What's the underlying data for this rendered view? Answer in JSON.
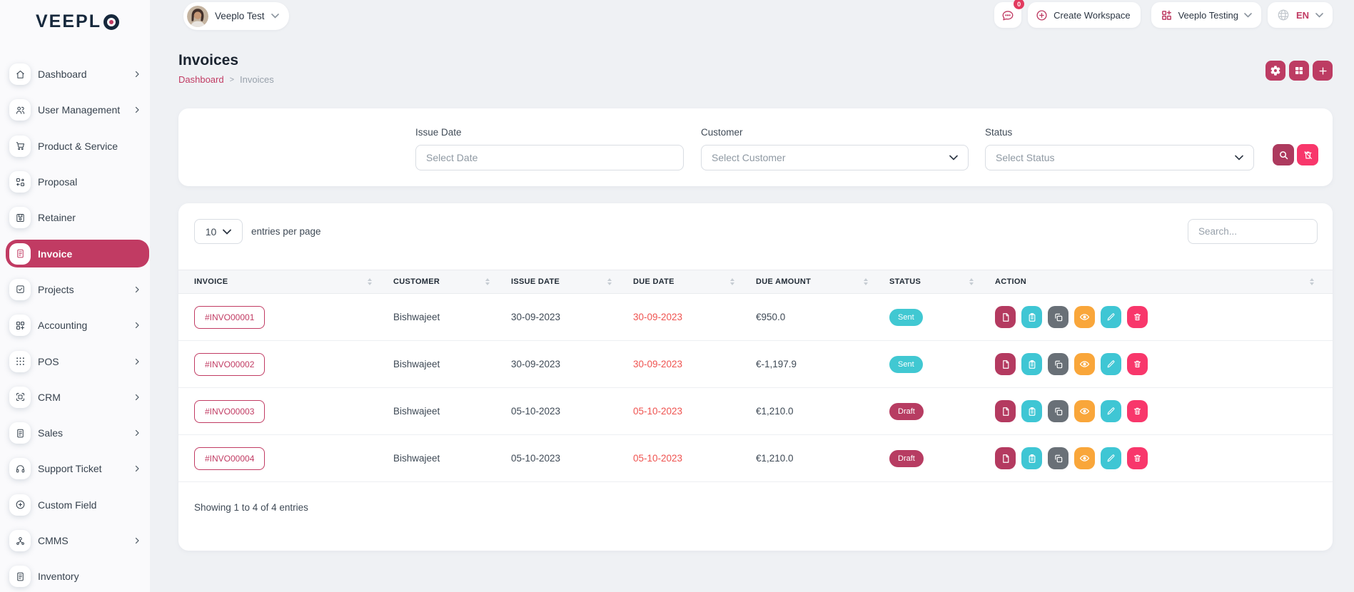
{
  "brand": {
    "name": "VEEPLO"
  },
  "header": {
    "user_workspace": "Veeplo Test",
    "notification_count": "0",
    "create_workspace_label": "Create Workspace",
    "workspace_selector": "Veeplo Testing",
    "language": "EN"
  },
  "sidebar": {
    "items": [
      {
        "label": "Dashboard",
        "icon": "home",
        "has_children": true,
        "active": false
      },
      {
        "label": "User Management",
        "icon": "users",
        "has_children": true,
        "active": false
      },
      {
        "label": "Product & Service",
        "icon": "cart",
        "has_children": false,
        "active": false
      },
      {
        "label": "Proposal",
        "icon": "swap-grid",
        "has_children": false,
        "active": false
      },
      {
        "label": "Retainer",
        "icon": "save",
        "has_children": false,
        "active": false
      },
      {
        "label": "Invoice",
        "icon": "invoice-doc",
        "has_children": false,
        "active": true
      },
      {
        "label": "Projects",
        "icon": "checkbox",
        "has_children": true,
        "active": false
      },
      {
        "label": "Accounting",
        "icon": "grid-plus",
        "has_children": true,
        "active": false
      },
      {
        "label": "POS",
        "icon": "dots-grid",
        "has_children": true,
        "active": false
      },
      {
        "label": "CRM",
        "icon": "scan-box",
        "has_children": true,
        "active": false
      },
      {
        "label": "Sales",
        "icon": "doc",
        "has_children": true,
        "active": false
      },
      {
        "label": "Support Ticket",
        "icon": "headset",
        "has_children": true,
        "active": false
      },
      {
        "label": "Custom Field",
        "icon": "circle-plus",
        "has_children": false,
        "active": false
      },
      {
        "label": "CMMS",
        "icon": "person-nodes",
        "has_children": true,
        "active": false
      },
      {
        "label": "Inventory",
        "icon": "doc",
        "has_children": false,
        "active": false
      }
    ]
  },
  "page": {
    "title": "Invoices",
    "breadcrumb": {
      "parent": "Dashboard",
      "current": "Invoices"
    }
  },
  "filters": {
    "issue_date": {
      "label": "Issue Date",
      "placeholder": "Select Date"
    },
    "customer": {
      "label": "Customer",
      "placeholder": "Select Customer"
    },
    "status": {
      "label": "Status",
      "placeholder": "Select Status"
    }
  },
  "table": {
    "entries_per_page_value": "10",
    "entries_per_page_label": "entries per page",
    "search_placeholder": "Search...",
    "columns": [
      "INVOICE",
      "CUSTOMER",
      "ISSUE DATE",
      "DUE DATE",
      "DUE AMOUNT",
      "STATUS",
      "ACTION"
    ],
    "rows": [
      {
        "invoice": "#INVO00001",
        "customer": "Bishwajeet",
        "issue_date": "30-09-2023",
        "due_date": "30-09-2023",
        "due_amount": "€950.0",
        "status": "Sent"
      },
      {
        "invoice": "#INVO00002",
        "customer": "Bishwajeet",
        "issue_date": "30-09-2023",
        "due_date": "30-09-2023",
        "due_amount": "€-1,197.9",
        "status": "Sent"
      },
      {
        "invoice": "#INVO00003",
        "customer": "Bishwajeet",
        "issue_date": "05-10-2023",
        "due_date": "05-10-2023",
        "due_amount": "€1,210.0",
        "status": "Draft"
      },
      {
        "invoice": "#INVO00004",
        "customer": "Bishwajeet",
        "issue_date": "05-10-2023",
        "due_date": "05-10-2023",
        "due_amount": "€1,210.0",
        "status": "Draft"
      }
    ],
    "actions": [
      {
        "icon": "file",
        "name": "pdf-action",
        "color": "#b43a60"
      },
      {
        "icon": "clipboard",
        "name": "duplicate-action",
        "color": "#3fc6d4"
      },
      {
        "icon": "copy",
        "name": "copy-link-action",
        "color": "#697077"
      },
      {
        "icon": "eye",
        "name": "view-action",
        "color": "#f9a63a"
      },
      {
        "icon": "pencil",
        "name": "edit-action",
        "color": "#3fc6d4"
      },
      {
        "icon": "trash",
        "name": "delete-action",
        "color": "#f8376b"
      }
    ],
    "footer": "Showing 1 to 4 of 4 entries"
  },
  "colors": {
    "accent": "#c13b63",
    "accent_dark": "#ad3a5e",
    "bright_pink": "#f8376b",
    "teal": "#3fc6d4",
    "orange": "#f9a63a",
    "gray_action": "#697077",
    "badge_sent": "#41c8d2",
    "badge_draft": "#b73c62",
    "due_date_red": "#ef5350"
  }
}
